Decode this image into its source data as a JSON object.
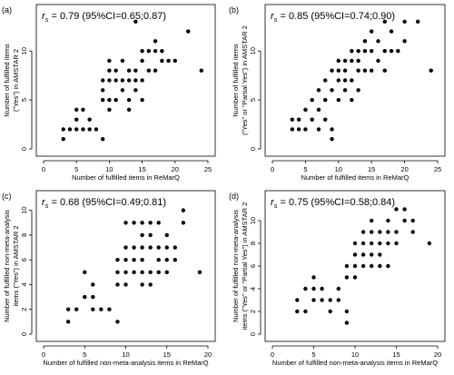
{
  "chart_data": [
    {
      "type": "scatter",
      "panel_label": "(a)",
      "stat": {
        "symbol": "r",
        "subscript": "s",
        "text": " = 0.79 (95%CI=0.65;0.87)"
      },
      "xlabel": "Number of fulfilled items in ReMarQ",
      "ylabel": [
        "Number of fulfilled items",
        "(\"Yes\") in AMSTAR 2"
      ],
      "xlim": [
        0,
        25
      ],
      "ylim": [
        0,
        14
      ],
      "xticks": [
        0,
        5,
        10,
        15,
        20,
        25
      ],
      "yticks": [
        0,
        5,
        10
      ],
      "points": [
        [
          3,
          1
        ],
        [
          3,
          2
        ],
        [
          4,
          2
        ],
        [
          5,
          2
        ],
        [
          5,
          3
        ],
        [
          5,
          4
        ],
        [
          6,
          4
        ],
        [
          6,
          2
        ],
        [
          7,
          3
        ],
        [
          7,
          2
        ],
        [
          8,
          2
        ],
        [
          9,
          1
        ],
        [
          9,
          5
        ],
        [
          9,
          6
        ],
        [
          9,
          7
        ],
        [
          10,
          4
        ],
        [
          10,
          5
        ],
        [
          10,
          7
        ],
        [
          10,
          8
        ],
        [
          10,
          9
        ],
        [
          11,
          5
        ],
        [
          11,
          7
        ],
        [
          11,
          8
        ],
        [
          12,
          6
        ],
        [
          12,
          7
        ],
        [
          12,
          9
        ],
        [
          13,
          4
        ],
        [
          13,
          5
        ],
        [
          13,
          7
        ],
        [
          13,
          8
        ],
        [
          14,
          6
        ],
        [
          14,
          7
        ],
        [
          14,
          8
        ],
        [
          14,
          13
        ],
        [
          15,
          5
        ],
        [
          15,
          7
        ],
        [
          15,
          9
        ],
        [
          15,
          10
        ],
        [
          16,
          8
        ],
        [
          16,
          10
        ],
        [
          17,
          8
        ],
        [
          17,
          10
        ],
        [
          17,
          11
        ],
        [
          18,
          9
        ],
        [
          18,
          10
        ],
        [
          19,
          9
        ],
        [
          20,
          9
        ],
        [
          22,
          12
        ],
        [
          24,
          8
        ]
      ]
    },
    {
      "type": "scatter",
      "panel_label": "(b)",
      "stat": {
        "symbol": "r",
        "subscript": "s",
        "text": " = 0.85 (95%CI=0.74;0.90)"
      },
      "xlabel": "Number of fulfilled items in ReMarQ",
      "ylabel": [
        "Number of fulfilled items",
        "(\"Yes\" or \"Partial Yes\") in AMSTAR 2"
      ],
      "xlim": [
        0,
        25
      ],
      "ylim": [
        0,
        14
      ],
      "xticks": [
        0,
        5,
        10,
        15,
        20,
        25
      ],
      "yticks": [
        0,
        5,
        10
      ],
      "points": [
        [
          3,
          2
        ],
        [
          3,
          3
        ],
        [
          4,
          2
        ],
        [
          4,
          3
        ],
        [
          5,
          2
        ],
        [
          5,
          4
        ],
        [
          6,
          3
        ],
        [
          6,
          5
        ],
        [
          7,
          2
        ],
        [
          7,
          4
        ],
        [
          7,
          6
        ],
        [
          8,
          3
        ],
        [
          8,
          5
        ],
        [
          8,
          7
        ],
        [
          9,
          1
        ],
        [
          9,
          2
        ],
        [
          9,
          6
        ],
        [
          9,
          8
        ],
        [
          10,
          5
        ],
        [
          10,
          7
        ],
        [
          10,
          8
        ],
        [
          10,
          9
        ],
        [
          11,
          6
        ],
        [
          11,
          7
        ],
        [
          11,
          8
        ],
        [
          11,
          9
        ],
        [
          12,
          5
        ],
        [
          12,
          7
        ],
        [
          12,
          9
        ],
        [
          12,
          10
        ],
        [
          13,
          6
        ],
        [
          13,
          8
        ],
        [
          13,
          9
        ],
        [
          13,
          10
        ],
        [
          14,
          8
        ],
        [
          14,
          10
        ],
        [
          14,
          11
        ],
        [
          15,
          8
        ],
        [
          15,
          10
        ],
        [
          15,
          12
        ],
        [
          16,
          9
        ],
        [
          16,
          11
        ],
        [
          17,
          8
        ],
        [
          17,
          10
        ],
        [
          17,
          13
        ],
        [
          18,
          10
        ],
        [
          18,
          12
        ],
        [
          19,
          10
        ],
        [
          20,
          11
        ],
        [
          20,
          13
        ],
        [
          22,
          13
        ],
        [
          24,
          8
        ]
      ]
    },
    {
      "type": "scatter",
      "panel_label": "(c)",
      "stat": {
        "symbol": "r",
        "subscript": "s",
        "text": " = 0.68 (95%CI=0.49;0.81)"
      },
      "xlabel": "Number of fulfilled non-meta-analysis items in ReMarQ",
      "ylabel": [
        "Number of fulfilled non-meta-analysis",
        "items (\"Yes\") in AMSTAR 2"
      ],
      "xlim": [
        0,
        20
      ],
      "ylim": [
        0,
        11
      ],
      "xticks": [
        0,
        5,
        10,
        15,
        20
      ],
      "yticks": [
        0,
        2,
        4,
        6,
        8,
        10
      ],
      "points": [
        [
          3,
          1
        ],
        [
          3,
          2
        ],
        [
          4,
          2
        ],
        [
          5,
          3
        ],
        [
          5,
          5
        ],
        [
          6,
          2
        ],
        [
          6,
          3
        ],
        [
          6,
          4
        ],
        [
          7,
          2
        ],
        [
          8,
          2
        ],
        [
          9,
          1
        ],
        [
          9,
          4
        ],
        [
          9,
          5
        ],
        [
          9,
          6
        ],
        [
          10,
          4
        ],
        [
          10,
          5
        ],
        [
          10,
          6
        ],
        [
          10,
          7
        ],
        [
          10,
          9
        ],
        [
          11,
          5
        ],
        [
          11,
          6
        ],
        [
          11,
          7
        ],
        [
          11,
          9
        ],
        [
          12,
          4
        ],
        [
          12,
          5
        ],
        [
          12,
          6
        ],
        [
          12,
          7
        ],
        [
          12,
          8
        ],
        [
          12,
          9
        ],
        [
          13,
          4
        ],
        [
          13,
          5
        ],
        [
          13,
          7
        ],
        [
          13,
          8
        ],
        [
          13,
          9
        ],
        [
          14,
          5
        ],
        [
          14,
          6
        ],
        [
          14,
          7
        ],
        [
          14,
          9
        ],
        [
          15,
          5
        ],
        [
          15,
          6
        ],
        [
          15,
          7
        ],
        [
          15,
          8
        ],
        [
          16,
          6
        ],
        [
          16,
          7
        ],
        [
          17,
          9
        ],
        [
          17,
          10
        ],
        [
          19,
          5
        ]
      ]
    },
    {
      "type": "scatter",
      "panel_label": "(d)",
      "stat": {
        "symbol": "r",
        "subscript": "s",
        "text": " = 0.75 (95%CI=0.58;0.84)"
      },
      "xlabel": "Number of fulfilled non-meta-analysis items in ReMarQ",
      "ylabel": [
        "Number of fulfilled non-meta-analysis",
        "items (\"Yes\" or \"Partial Yes\") in AMSTAR 2"
      ],
      "xlim": [
        0,
        20
      ],
      "ylim": [
        0,
        12
      ],
      "xticks": [
        0,
        5,
        10,
        15,
        20
      ],
      "yticks": [
        0,
        2,
        4,
        6,
        8,
        10
      ],
      "points": [
        [
          3,
          2
        ],
        [
          3,
          3
        ],
        [
          4,
          2
        ],
        [
          4,
          4
        ],
        [
          5,
          3
        ],
        [
          5,
          4
        ],
        [
          5,
          5
        ],
        [
          6,
          3
        ],
        [
          6,
          4
        ],
        [
          7,
          2
        ],
        [
          7,
          3
        ],
        [
          8,
          3
        ],
        [
          8,
          4
        ],
        [
          9,
          1
        ],
        [
          9,
          2
        ],
        [
          9,
          5
        ],
        [
          9,
          6
        ],
        [
          10,
          5
        ],
        [
          10,
          6
        ],
        [
          10,
          7
        ],
        [
          10,
          8
        ],
        [
          11,
          6
        ],
        [
          11,
          7
        ],
        [
          11,
          8
        ],
        [
          11,
          9
        ],
        [
          12,
          6
        ],
        [
          12,
          7
        ],
        [
          12,
          8
        ],
        [
          12,
          9
        ],
        [
          12,
          10
        ],
        [
          13,
          6
        ],
        [
          13,
          7
        ],
        [
          13,
          8
        ],
        [
          13,
          9
        ],
        [
          14,
          6
        ],
        [
          14,
          8
        ],
        [
          14,
          9
        ],
        [
          14,
          10
        ],
        [
          15,
          8
        ],
        [
          15,
          9
        ],
        [
          15,
          11
        ],
        [
          16,
          10
        ],
        [
          16,
          11
        ],
        [
          17,
          9
        ],
        [
          17,
          10
        ],
        [
          19,
          8
        ]
      ]
    }
  ]
}
